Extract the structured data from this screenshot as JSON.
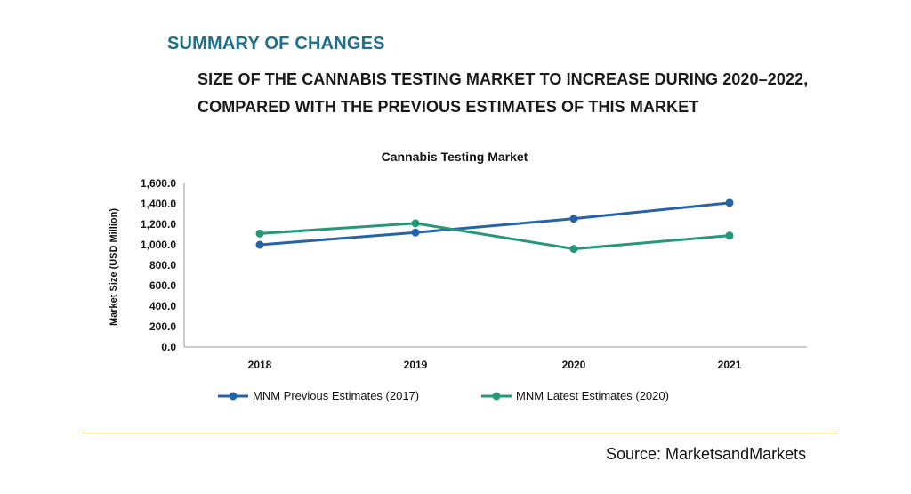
{
  "header": {
    "section_title": "SUMMARY OF CHANGES",
    "subtitle_line1": "SIZE OF THE CANNABIS TESTING MARKET TO INCREASE DURING 2020–2022,",
    "subtitle_line2": "COMPARED WITH THE PREVIOUS ESTIMATES OF THIS MARKET"
  },
  "chart_data": {
    "type": "line",
    "title": "Cannabis Testing Market",
    "xlabel": "",
    "ylabel": "Market Size (USD Million)",
    "categories": [
      "2018",
      "2019",
      "2020",
      "2021"
    ],
    "ylim": [
      0,
      1600
    ],
    "yticks": [
      "0.0",
      "200.0",
      "400.0",
      "600.0",
      "800.0",
      "1,000.0",
      "1,200.0",
      "1,400.0",
      "1,600.0"
    ],
    "grid": false,
    "legend_position": "bottom",
    "series": [
      {
        "name": "MNM Previous Estimates (2017)",
        "color": "#2563a8",
        "values": [
          1000,
          1120,
          1255,
          1410
        ]
      },
      {
        "name": "MNM Latest Estimates (2020)",
        "color": "#27977a",
        "values": [
          1110,
          1210,
          960,
          1090
        ]
      }
    ]
  },
  "footer": {
    "source": "Source: MarketsandMarkets"
  }
}
